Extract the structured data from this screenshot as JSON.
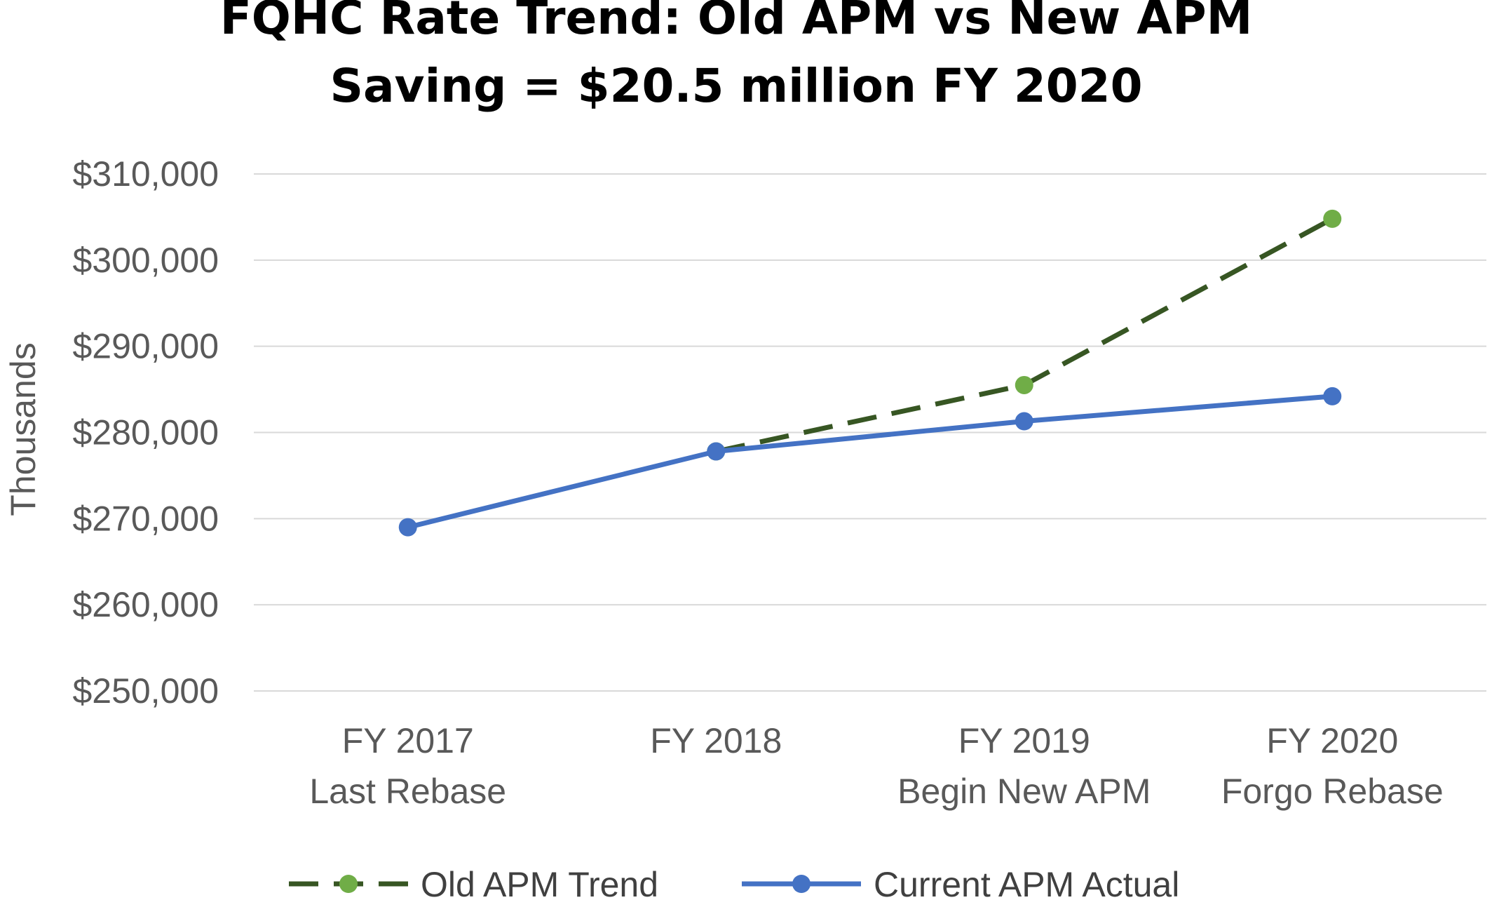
{
  "chart_data": {
    "type": "line",
    "title_line1": "FQHC Rate Trend: Old APM vs New APM",
    "title_line2": "Saving = $20.5 million FY 2020",
    "ylabel": "Thousands",
    "xlabel": "",
    "ylim": [
      250000,
      310000
    ],
    "yticks": [
      250000,
      260000,
      270000,
      280000,
      290000,
      300000,
      310000
    ],
    "ytick_labels": [
      "$250,000",
      "$260,000",
      "$270,000",
      "$280,000",
      "$290,000",
      "$300,000",
      "$310,000"
    ],
    "grid": true,
    "legend_position": "bottom",
    "categories": [
      {
        "line1": "FY 2017",
        "line2": "Last Rebase"
      },
      {
        "line1": "FY 2018",
        "line2": ""
      },
      {
        "line1": "FY 2019",
        "line2": "Begin New APM"
      },
      {
        "line1": "FY 2020",
        "line2": "Forgo Rebase"
      }
    ],
    "series": [
      {
        "name": "Old APM Trend",
        "values": [
          null,
          277800,
          285500,
          304800
        ],
        "line_color": "#375623",
        "marker_color": "#70AD47",
        "dashed": true
      },
      {
        "name": "Current APM Actual",
        "values": [
          269000,
          277800,
          281300,
          284200
        ],
        "line_color": "#4472C4",
        "marker_color": "#4472C4",
        "dashed": false
      }
    ]
  }
}
